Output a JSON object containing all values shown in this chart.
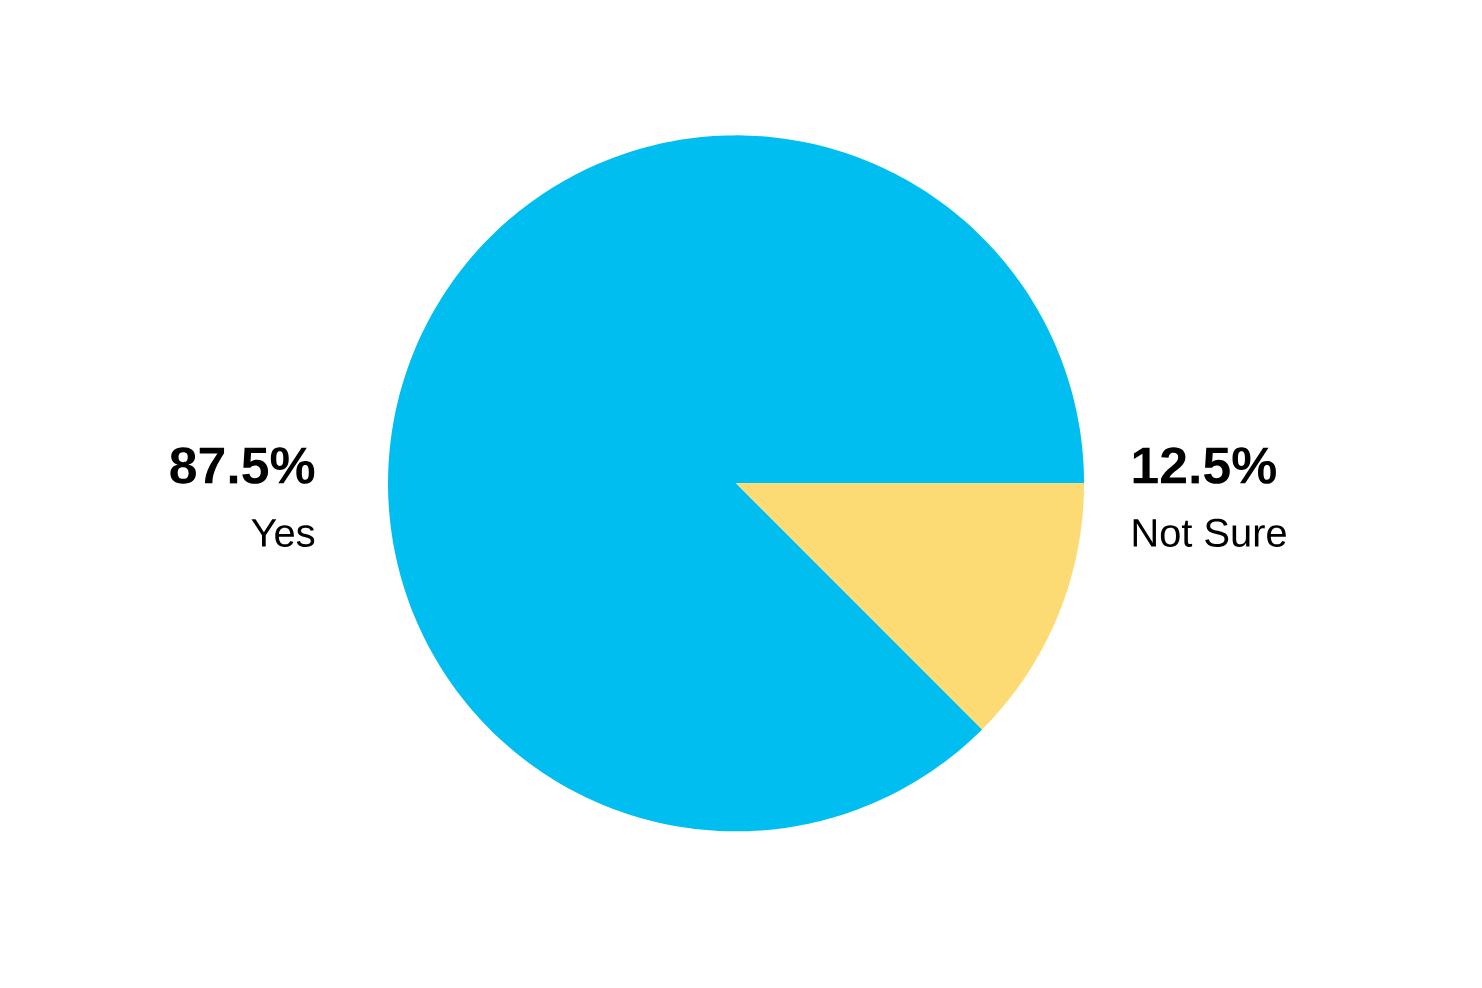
{
  "chart_data": {
    "type": "pie",
    "categories": [
      "Yes",
      "Not Sure"
    ],
    "values": [
      87.5,
      12.5
    ],
    "colors": [
      "#00bff0",
      "#fddb74"
    ],
    "value_labels": [
      "87.5%",
      "12.5%"
    ]
  }
}
